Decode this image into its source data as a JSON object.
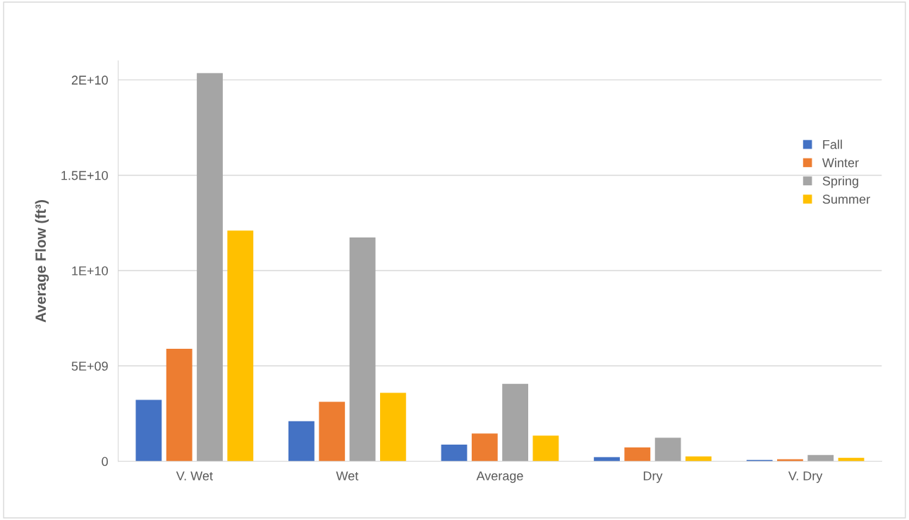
{
  "chart_data": {
    "type": "bar",
    "ylabel": "Average Flow (ft³)",
    "categories": [
      "V. Wet",
      "Wet",
      "Average",
      "Dry",
      "V. Dry"
    ],
    "series": [
      {
        "name": "Fall",
        "color": "#4472c4",
        "values": [
          3220000000.0,
          2100000000.0,
          870000000.0,
          220000000.0,
          70000000.0
        ]
      },
      {
        "name": "Winter",
        "color": "#ed7d31",
        "values": [
          5900000000.0,
          3120000000.0,
          1450000000.0,
          720000000.0,
          110000000.0
        ]
      },
      {
        "name": "Spring",
        "color": "#a5a5a5",
        "values": [
          20360000000.0,
          11740000000.0,
          4060000000.0,
          1230000000.0,
          330000000.0
        ]
      },
      {
        "name": "Summer",
        "color": "#ffc000",
        "values": [
          12100000000.0,
          3590000000.0,
          1340000000.0,
          250000000.0,
          180000000.0
        ]
      }
    ],
    "ylim": [
      0,
      21000000000.0
    ],
    "yticks": [
      {
        "value": 0,
        "label": "0"
      },
      {
        "value": 5000000000.0,
        "label": "5E+09"
      },
      {
        "value": 10000000000.0,
        "label": "1E+10"
      },
      {
        "value": 15000000000.0,
        "label": "1.5E+10"
      },
      {
        "value": 20000000000.0,
        "label": "2E+10"
      }
    ],
    "grid": "y",
    "legend": "right"
  }
}
